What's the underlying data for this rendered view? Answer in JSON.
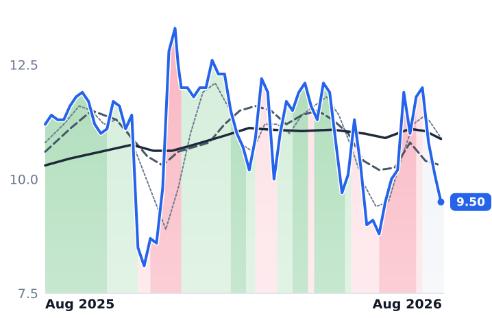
{
  "chart_data": {
    "type": "line",
    "title": "",
    "xlabel": "",
    "ylabel": "",
    "x_ticks": [
      "Aug 2025",
      "Aug 2026"
    ],
    "y_ticks": [
      "7.5",
      "10.0",
      "12.5"
    ],
    "ylim": [
      7.5,
      13.8
    ],
    "x_range_months": [
      -0.3,
      12.6
    ],
    "grid": false,
    "legend": "none",
    "last_value_label": "9.50",
    "colors": {
      "price": "#2563eb",
      "long_ma": "#1e293b",
      "mid_ma": "#475569",
      "short_ma": "#6b7a90",
      "green_dark": "#a9dbb6",
      "green_light": "#d2edd8",
      "red_dark": "#f9b4c0",
      "red_light": "#fde0e5",
      "neutral": "#f1f4f8"
    },
    "regimes": [
      {
        "start": -0.3,
        "end": 1.7,
        "state": "green_dark"
      },
      {
        "start": 1.7,
        "end": 2.7,
        "state": "green_light"
      },
      {
        "start": 2.7,
        "end": 3.1,
        "state": "red_light"
      },
      {
        "start": 3.1,
        "end": 4.1,
        "state": "red_dark"
      },
      {
        "start": 4.1,
        "end": 5.7,
        "state": "green_light"
      },
      {
        "start": 5.7,
        "end": 6.2,
        "state": "green_dark"
      },
      {
        "start": 6.2,
        "end": 6.5,
        "state": "green_light"
      },
      {
        "start": 6.5,
        "end": 7.2,
        "state": "red_light"
      },
      {
        "start": 7.2,
        "end": 7.7,
        "state": "green_light"
      },
      {
        "start": 7.7,
        "end": 8.2,
        "state": "green_dark"
      },
      {
        "start": 8.2,
        "end": 8.4,
        "state": "red_light"
      },
      {
        "start": 8.4,
        "end": 9.4,
        "state": "green_dark"
      },
      {
        "start": 9.4,
        "end": 9.6,
        "state": "green_light"
      },
      {
        "start": 9.6,
        "end": 10.5,
        "state": "red_light"
      },
      {
        "start": 10.5,
        "end": 11.7,
        "state": "red_dark"
      },
      {
        "start": 11.7,
        "end": 11.9,
        "state": "red_light"
      },
      {
        "start": 11.9,
        "end": 12.6,
        "state": "neutral"
      }
    ],
    "series": [
      {
        "key": "price",
        "x": [
          -0.3,
          -0.1,
          0.1,
          0.3,
          0.5,
          0.7,
          0.9,
          1.1,
          1.3,
          1.5,
          1.7,
          1.9,
          2.1,
          2.3,
          2.5,
          2.7,
          2.9,
          3.1,
          3.3,
          3.5,
          3.7,
          3.9,
          4.0,
          4.1,
          4.3,
          4.5,
          4.7,
          4.9,
          5.1,
          5.3,
          5.5,
          5.7,
          5.9,
          6.1,
          6.3,
          6.5,
          6.7,
          6.9,
          7.1,
          7.3,
          7.5,
          7.7,
          7.9,
          8.1,
          8.3,
          8.5,
          8.7,
          8.9,
          9.1,
          9.3,
          9.5,
          9.7,
          9.9,
          10.1,
          10.3,
          10.5,
          10.7,
          10.9,
          11.1,
          11.3,
          11.5,
          11.7,
          11.9,
          12.1,
          12.3,
          12.5
        ],
        "y": [
          11.2,
          11.4,
          11.3,
          11.3,
          11.6,
          11.8,
          11.9,
          11.7,
          11.2,
          11.0,
          11.1,
          11.7,
          11.6,
          11.1,
          11.4,
          8.5,
          8.1,
          8.7,
          8.6,
          9.8,
          12.8,
          13.3,
          12.5,
          12.0,
          12.0,
          11.8,
          12.0,
          12.0,
          12.6,
          12.3,
          12.3,
          11.5,
          11.0,
          10.7,
          10.2,
          10.9,
          12.2,
          11.9,
          10.0,
          11.0,
          11.7,
          11.5,
          11.9,
          12.1,
          11.6,
          11.3,
          12.1,
          11.9,
          10.8,
          9.7,
          10.1,
          11.3,
          10.3,
          9.0,
          9.1,
          8.8,
          9.5,
          10.0,
          10.2,
          11.9,
          11.0,
          11.8,
          12.0,
          10.8,
          10.1,
          9.5
        ]
      },
      {
        "key": "long_ma",
        "x": [
          -0.3,
          0.5,
          1.5,
          2.5,
          3.2,
          3.8,
          4.5,
          5.5,
          6.3,
          7.0,
          8.0,
          9.0,
          10.0,
          10.7,
          11.5,
          12.0,
          12.5
        ],
        "y": [
          10.3,
          10.45,
          10.6,
          10.75,
          10.62,
          10.62,
          10.75,
          10.95,
          11.12,
          11.08,
          11.05,
          11.08,
          11.0,
          10.9,
          11.1,
          11.05,
          10.88
        ]
      },
      {
        "key": "mid_ma",
        "x": [
          -0.3,
          0.5,
          1.2,
          2.0,
          2.5,
          3.0,
          3.5,
          4.0,
          4.5,
          5.0,
          5.5,
          6.0,
          6.5,
          7.0,
          7.5,
          8.0,
          8.5,
          9.0,
          9.5,
          10.0,
          10.5,
          11.0,
          11.5,
          12.0,
          12.5
        ],
        "y": [
          10.6,
          11.1,
          11.5,
          11.3,
          10.9,
          10.5,
          10.3,
          10.6,
          10.7,
          10.8,
          11.2,
          11.5,
          11.6,
          11.5,
          11.2,
          11.4,
          11.5,
          11.3,
          11.0,
          10.4,
          10.2,
          10.25,
          10.8,
          10.4,
          10.3
        ]
      },
      {
        "key": "short_ma",
        "x": [
          -0.3,
          0.3,
          0.8,
          1.2,
          1.6,
          2.0,
          2.4,
          2.8,
          3.2,
          3.6,
          4.0,
          4.4,
          4.8,
          5.2,
          5.6,
          6.0,
          6.4,
          6.8,
          7.2,
          7.6,
          8.0,
          8.4,
          8.8,
          9.2,
          9.6,
          10.0,
          10.4,
          10.8,
          11.2,
          11.6,
          12.0,
          12.5
        ],
        "y": [
          10.8,
          11.2,
          11.6,
          11.5,
          11.2,
          11.3,
          11.0,
          10.3,
          9.6,
          8.9,
          9.8,
          11.0,
          11.9,
          12.1,
          11.6,
          10.8,
          10.6,
          11.2,
          11.2,
          11.0,
          11.4,
          11.6,
          11.8,
          11.4,
          10.7,
          9.9,
          9.4,
          9.5,
          10.4,
          11.2,
          11.4,
          10.9
        ]
      }
    ]
  }
}
